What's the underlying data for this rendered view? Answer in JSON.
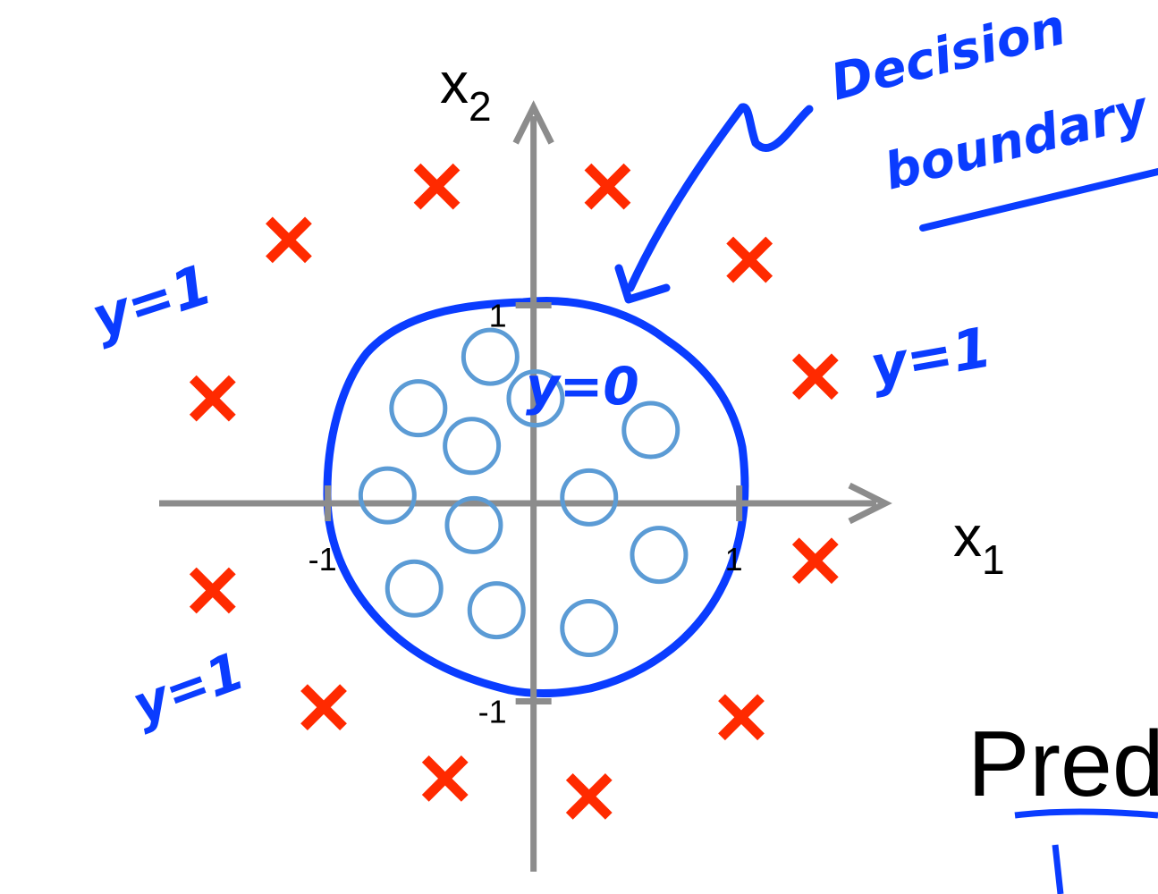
{
  "chart_data": {
    "type": "scatter",
    "xlim": [
      -1.82,
      1.71
    ],
    "ylim": [
      -1.86,
      2.0
    ],
    "xticks": [
      -1,
      1
    ],
    "yticks": [
      -1,
      1
    ],
    "xlabel": {
      "text": "x",
      "subscript": "1"
    },
    "ylabel": {
      "text": "x",
      "subscript": "2"
    },
    "series": [
      {
        "marker": "x",
        "color": "#ff2a00",
        "x": [
          -0.47,
          0.36,
          -1.19,
          1.05,
          -1.56,
          1.37,
          -1.56,
          1.37,
          -1.02,
          1.01,
          -0.43,
          0.27
        ],
        "values": [
          1.6,
          1.6,
          1.33,
          1.23,
          0.53,
          0.64,
          -0.44,
          -0.29,
          -1.03,
          -1.08,
          -1.39,
          -1.48
        ]
      },
      {
        "marker": "o",
        "color": "#5b9bd5",
        "x": [
          -0.21,
          0.01,
          -0.56,
          0.57,
          -0.3,
          -0.71,
          0.27,
          -0.29,
          0.61,
          -0.58,
          -0.18,
          0.27
        ],
        "values": [
          0.74,
          0.53,
          0.48,
          0.37,
          0.29,
          0.04,
          0.03,
          -0.11,
          -0.26,
          -0.43,
          -0.54,
          -0.63
        ]
      }
    ],
    "annotations": [
      "Decision",
      "boundary",
      "y=1",
      "y=1",
      "y=1",
      "y=0"
    ]
  },
  "slide_text": "Pred"
}
